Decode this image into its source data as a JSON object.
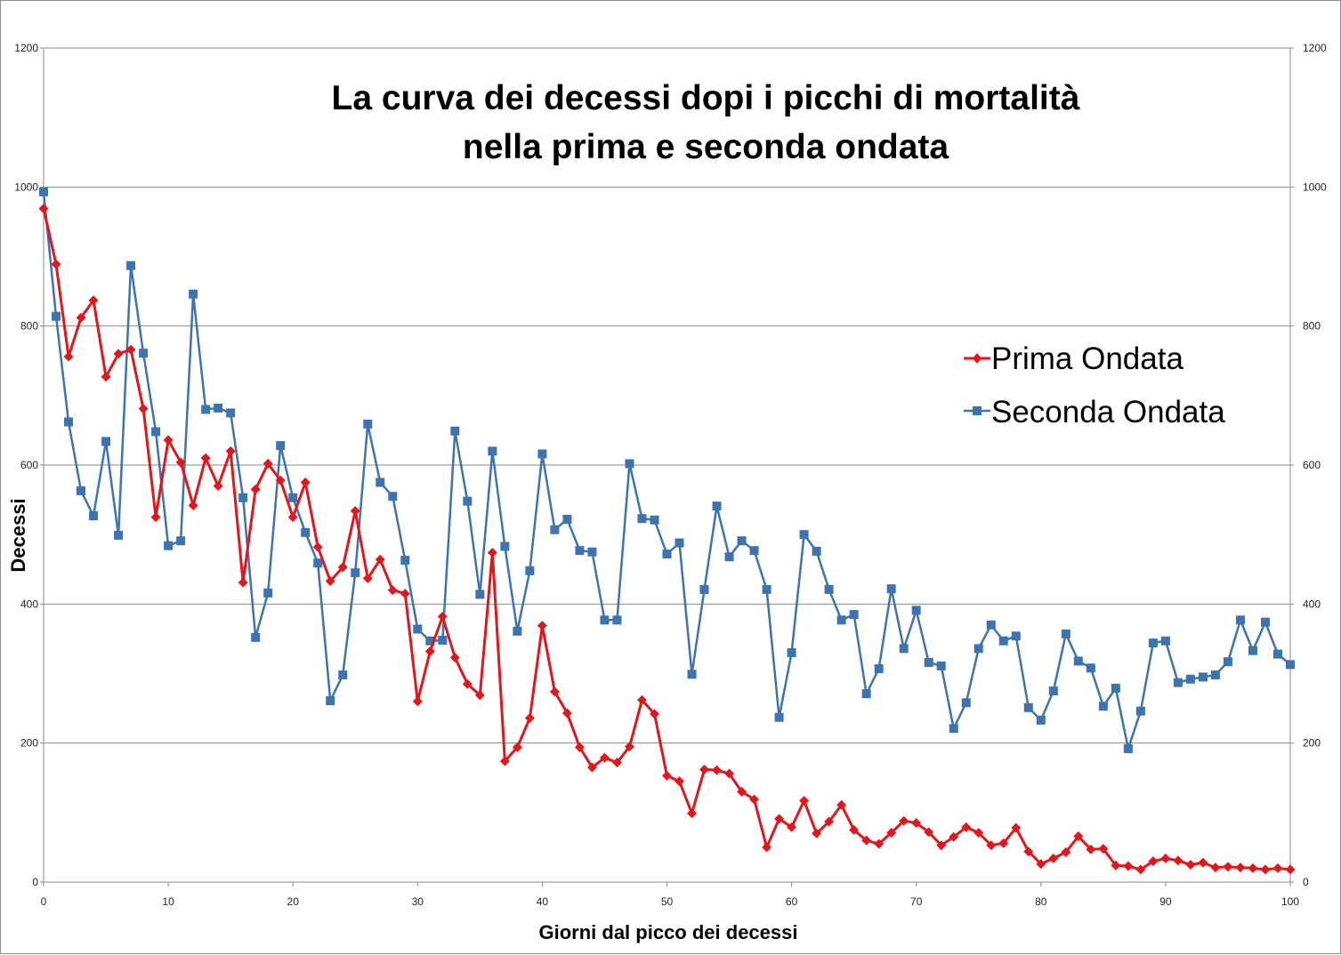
{
  "chart_data": {
    "type": "line",
    "title_lines": [
      "La curva dei decessi dopi i picchi di mortalità",
      "nella prima e seconda ondata"
    ],
    "xlabel": "Giorni dal picco dei decessi",
    "ylabel": "Decessi",
    "xlim": [
      0,
      100
    ],
    "ylim": [
      0,
      1200
    ],
    "x_ticks": [
      0,
      10,
      20,
      30,
      40,
      50,
      60,
      70,
      80,
      90,
      100
    ],
    "y_ticks": [
      0,
      200,
      400,
      600,
      800,
      1000,
      1200
    ],
    "secondary_y_axis": true,
    "grid": "horizontal",
    "legend_position": "right",
    "series": [
      {
        "name": "Prima Ondata",
        "color": "#e3161b",
        "marker": "diamond",
        "x_start": 0,
        "values": [
          969,
          889,
          756,
          812,
          837,
          727,
          760,
          766,
          681,
          525,
          636,
          604,
          542,
          610,
          570,
          620,
          431,
          565,
          602,
          578,
          525,
          575,
          482,
          433,
          453,
          534,
          437,
          464,
          420,
          415,
          260,
          332,
          382,
          323,
          285,
          269,
          474,
          174,
          194,
          236,
          369,
          274,
          243,
          194,
          165,
          179,
          172,
          195,
          262,
          242,
          153,
          145,
          99,
          162,
          161,
          156,
          130,
          119,
          50,
          91,
          79,
          117,
          70,
          87,
          111,
          75,
          60,
          55,
          71,
          88,
          85,
          72,
          53,
          65,
          79,
          71,
          53,
          56,
          78,
          44,
          26,
          34,
          43,
          66,
          47,
          48,
          24,
          23,
          18,
          30,
          34,
          31,
          25,
          28,
          21,
          22,
          21,
          20,
          18,
          20,
          18
        ]
      },
      {
        "name": "Seconda Ondata",
        "color": "#3c74b1",
        "marker": "square",
        "x_start": 0,
        "values": [
          993,
          814,
          662,
          563,
          527,
          634,
          499,
          887,
          761,
          648,
          484,
          491,
          846,
          680,
          682,
          675,
          553,
          352,
          416,
          628,
          553,
          503,
          459,
          261,
          298,
          445,
          659,
          575,
          555,
          463,
          364,
          347,
          348,
          649,
          548,
          414,
          620,
          483,
          361,
          448,
          616,
          507,
          522,
          477,
          475,
          377,
          377,
          602,
          523,
          521,
          472,
          488,
          299,
          421,
          541,
          468,
          491,
          477,
          421,
          237,
          330,
          500,
          476,
          421,
          377,
          385,
          271,
          307,
          422,
          336,
          391,
          316,
          311,
          221,
          258,
          336,
          370,
          347,
          354,
          251,
          233,
          275,
          357,
          318,
          308,
          253,
          279,
          192,
          246,
          344,
          347,
          287,
          292,
          295,
          298,
          317,
          377,
          333,
          374,
          328,
          313
        ]
      }
    ]
  }
}
